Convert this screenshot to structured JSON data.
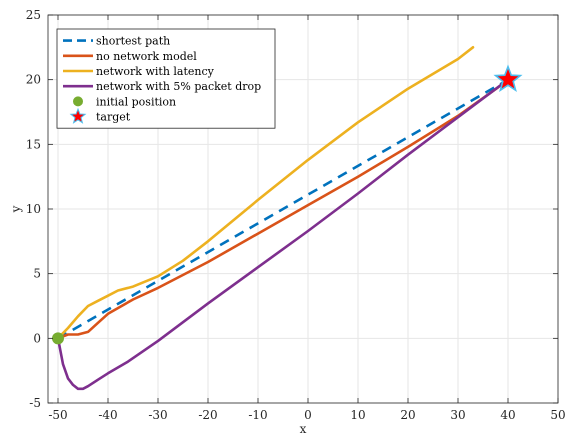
{
  "chart_data": {
    "type": "line",
    "xlabel": "x",
    "ylabel": "y",
    "xlim": [
      -52,
      50
    ],
    "ylim": [
      -5,
      25
    ],
    "xticks": [
      -50,
      -40,
      -30,
      -20,
      -10,
      0,
      10,
      20,
      30,
      40,
      50
    ],
    "yticks": [
      -5,
      0,
      5,
      10,
      15,
      20,
      25
    ],
    "grid": true,
    "legend_position": "top-left",
    "series": [
      {
        "name": "shortest path",
        "style": "dashed",
        "color": "#0072BD",
        "x": [
          -50,
          40
        ],
        "y": [
          0,
          20
        ]
      },
      {
        "name": "no network model",
        "style": "solid",
        "color": "#D95319",
        "x": [
          -50,
          -48,
          -46,
          -44,
          -42,
          -40,
          -35,
          -30,
          -20,
          -10,
          0,
          10,
          20,
          30,
          38,
          40
        ],
        "y": [
          0,
          0.3,
          0.3,
          0.5,
          1.2,
          1.9,
          3.0,
          3.9,
          5.9,
          8.1,
          10.3,
          12.5,
          14.8,
          17.2,
          19.4,
          20
        ]
      },
      {
        "name": "network with latency",
        "style": "solid",
        "color": "#EDB120",
        "x": [
          -50,
          -48,
          -46,
          -44,
          -42,
          -40,
          -38,
          -35,
          -30,
          -25,
          -20,
          -10,
          0,
          10,
          20,
          30,
          33
        ],
        "y": [
          0,
          0.8,
          1.7,
          2.5,
          2.9,
          3.3,
          3.7,
          4.0,
          4.8,
          6.0,
          7.5,
          10.7,
          13.8,
          16.7,
          19.3,
          21.6,
          22.5
        ]
      },
      {
        "name": "network with 5% packet drop",
        "style": "solid",
        "color": "#7E2F8E",
        "x": [
          -50,
          -49.5,
          -49,
          -48,
          -47,
          -46,
          -45,
          -44,
          -42,
          -40,
          -36,
          -30,
          -20,
          -10,
          0,
          10,
          20,
          30,
          40
        ],
        "y": [
          0,
          -1.0,
          -2.0,
          -3.1,
          -3.6,
          -3.9,
          -3.9,
          -3.7,
          -3.2,
          -2.7,
          -1.8,
          -0.2,
          2.7,
          5.5,
          8.3,
          11.2,
          14.2,
          17.1,
          20
        ]
      }
    ],
    "markers": [
      {
        "name": "initial position",
        "shape": "circle",
        "color": "#77AC30",
        "x": -50,
        "y": 0
      },
      {
        "name": "target",
        "shape": "star",
        "color": "#FF0000",
        "edge_color": "#4DBEEE",
        "x": 40,
        "y": 20
      }
    ]
  }
}
